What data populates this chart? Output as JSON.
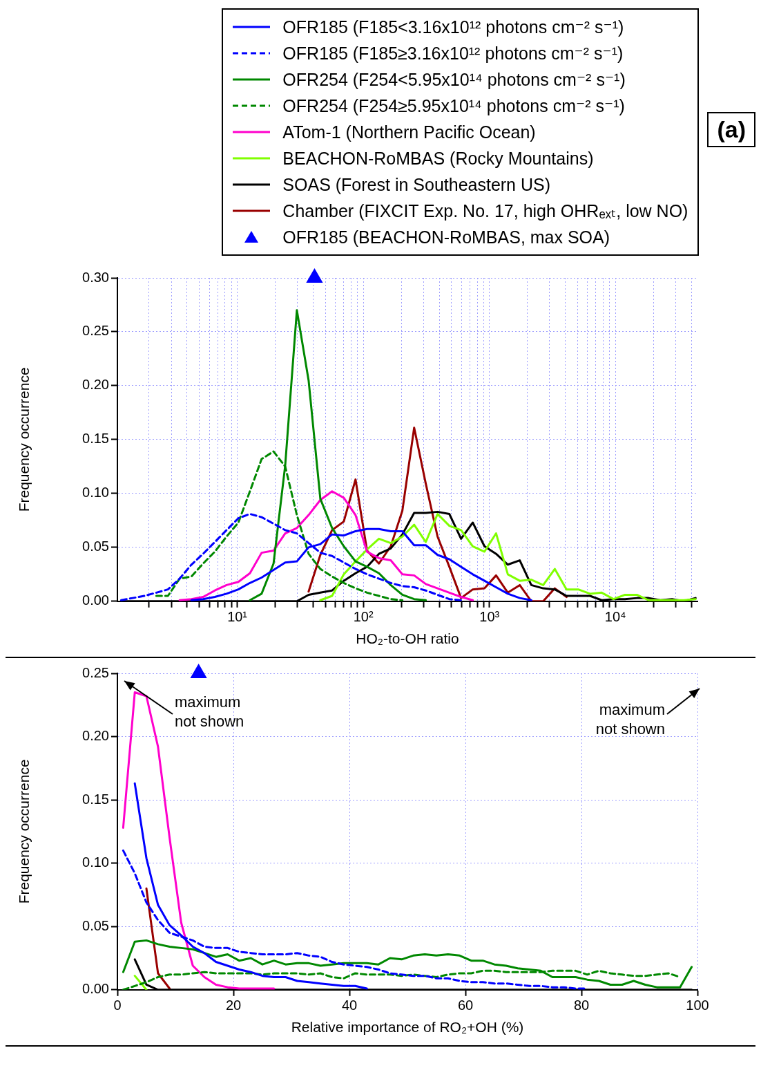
{
  "chart_data": [
    {
      "type": "line",
      "xlabel": "HO₂-to-OH ratio",
      "ylabel": "Frequency occurrence",
      "log": "x",
      "grid": true,
      "legend": "top right",
      "annotations": [
        "(a)"
      ],
      "x": [
        1.2,
        1.48,
        1.84,
        2.28,
        2.82,
        3.49,
        4.33,
        5.36,
        6.64,
        8.22,
        10.2,
        12.6,
        15.6,
        19.4,
        24.0,
        29.7,
        36.8,
        45.6,
        56.5,
        70.0,
        86.7,
        107,
        133,
        165,
        204,
        253,
        313,
        388,
        481,
        596,
        738,
        914,
        1130,
        1400,
        1740,
        2150,
        2670,
        3300,
        4090,
        5070,
        6280,
        7780,
        9640,
        11900,
        14800,
        18300,
        22700,
        28100,
        34800,
        43200
      ],
      "xlim": [
        1.12,
        44700
      ],
      "xticks": [
        {
          "value": 2,
          "label": null
        },
        {
          "value": 3,
          "label": null
        },
        {
          "value": 4,
          "label": null
        },
        {
          "value": 5,
          "label": null
        },
        {
          "value": 6,
          "label": null
        },
        {
          "value": 7,
          "label": null
        },
        {
          "value": 8,
          "label": null
        },
        {
          "value": 9,
          "label": null
        },
        {
          "value": 10,
          "label": "10¹"
        },
        {
          "value": 20,
          "label": null
        },
        {
          "value": 30,
          "label": null
        },
        {
          "value": 40,
          "label": null
        },
        {
          "value": 50,
          "label": null
        },
        {
          "value": 60,
          "label": null
        },
        {
          "value": 70,
          "label": null
        },
        {
          "value": 80,
          "label": null
        },
        {
          "value": 90,
          "label": null
        },
        {
          "value": 100,
          "label": "10²"
        },
        {
          "value": 200,
          "label": null
        },
        {
          "value": 300,
          "label": null
        },
        {
          "value": 400,
          "label": null
        },
        {
          "value": 500,
          "label": null
        },
        {
          "value": 600,
          "label": null
        },
        {
          "value": 700,
          "label": null
        },
        {
          "value": 800,
          "label": null
        },
        {
          "value": 900,
          "label": null
        },
        {
          "value": 1000,
          "label": "10³"
        },
        {
          "value": 2000,
          "label": null
        },
        {
          "value": 3000,
          "label": null
        },
        {
          "value": 4000,
          "label": null
        },
        {
          "value": 5000,
          "label": null
        },
        {
          "value": 6000,
          "label": null
        },
        {
          "value": 7000,
          "label": null
        },
        {
          "value": 8000,
          "label": null
        },
        {
          "value": 9000,
          "label": null
        },
        {
          "value": 10000,
          "label": "10⁴"
        },
        {
          "value": 20000,
          "label": null
        },
        {
          "value": 30000,
          "label": null
        },
        {
          "value": 40000,
          "label": null
        }
      ],
      "ylim": [
        0,
        0.3
      ],
      "yticks": [
        {
          "value": 0,
          "label": "0.00"
        },
        {
          "value": 0.05,
          "label": "0.05"
        },
        {
          "value": 0.1,
          "label": "0.10"
        },
        {
          "value": 0.15,
          "label": "0.15"
        },
        {
          "value": 0.2,
          "label": "0.20"
        },
        {
          "value": 0.25,
          "label": "0.25"
        },
        {
          "value": 0.3,
          "label": "0.30"
        }
      ],
      "series": [
        {
          "name": "OFR185 (F185<3.16x10¹² photons cm⁻² s⁻¹)",
          "color": "#0000ff",
          "values": [
            null,
            null,
            null,
            null,
            null,
            null,
            0.001,
            0.002,
            0.004,
            0.007,
            0.011,
            0.017,
            0.022,
            0.029,
            0.036,
            0.037,
            0.05,
            0.053,
            0.062,
            0.061,
            0.065,
            0.067,
            0.067,
            0.065,
            0.065,
            0.052,
            0.052,
            0.043,
            0.039,
            0.032,
            0.025,
            0.019,
            0.013,
            0.007,
            0.003,
            0.001,
            null,
            null,
            null,
            null,
            null,
            null,
            null,
            null,
            null,
            null,
            null,
            null,
            null,
            null
          ]
        },
        {
          "name": "OFR185 (F185≥3.16x10¹² photons cm⁻² s⁻¹)",
          "color": "#0000ff",
          "line_style": "dashed",
          "values": [
            0.001,
            0.003,
            0.005,
            0.008,
            0.011,
            0.021,
            0.034,
            0.044,
            0.055,
            0.066,
            0.077,
            0.081,
            0.078,
            0.072,
            0.066,
            0.063,
            0.054,
            0.045,
            0.042,
            0.036,
            0.03,
            0.025,
            0.021,
            0.017,
            0.014,
            0.013,
            0.01,
            0.006,
            0.002,
            0.001,
            null,
            null,
            null,
            null,
            null,
            null,
            null,
            null,
            null,
            null,
            null,
            null,
            null,
            null,
            null,
            null,
            null,
            null,
            null,
            null
          ]
        },
        {
          "name": "OFR254 (F254<5.95x10¹⁴ photons cm⁻² s⁻¹)",
          "color": "#008800",
          "values": [
            null,
            null,
            null,
            null,
            null,
            null,
            null,
            null,
            null,
            null,
            null,
            0.001,
            0.007,
            0.035,
            0.126,
            0.27,
            0.205,
            0.095,
            0.068,
            0.051,
            0.037,
            0.032,
            0.026,
            0.015,
            0.006,
            0.002,
            0.001,
            null,
            null,
            null,
            null,
            null,
            null,
            null,
            null,
            null,
            null,
            null,
            null,
            null,
            null,
            null,
            null,
            null,
            null,
            null,
            null,
            null,
            null,
            null
          ]
        },
        {
          "name": "OFR254 (F254≥5.95x10¹⁴ photons cm⁻² s⁻¹)",
          "color": "#008800",
          "line_style": "dashed",
          "values": [
            null,
            null,
            null,
            0.005,
            0.005,
            0.021,
            0.023,
            0.035,
            0.046,
            0.06,
            0.073,
            0.102,
            0.132,
            0.139,
            0.125,
            0.08,
            0.044,
            0.03,
            0.023,
            0.017,
            0.012,
            0.008,
            0.005,
            0.002,
            0.001,
            null,
            null,
            null,
            null,
            null,
            null,
            null,
            null,
            null,
            null,
            null,
            null,
            null,
            null,
            null,
            null,
            null,
            null,
            null,
            null,
            null,
            null,
            null,
            null,
            null
          ]
        },
        {
          "name": "ATom-1 (Northern Pacific Ocean)",
          "color": "#ff00cc",
          "values": [
            null,
            null,
            null,
            null,
            null,
            0.001,
            0.002,
            0.004,
            0.01,
            0.015,
            0.018,
            0.026,
            0.045,
            0.047,
            0.063,
            0.068,
            0.08,
            0.094,
            0.102,
            0.096,
            0.08,
            0.046,
            0.04,
            0.038,
            0.025,
            0.024,
            0.016,
            0.012,
            0.008,
            0.004,
            0.001,
            null,
            null,
            null,
            null,
            null,
            null,
            null,
            null,
            null,
            null,
            null,
            null,
            null,
            null,
            null,
            null,
            null,
            null,
            null
          ]
        },
        {
          "name": "BEACHON-RoMBAS (Rocky Mountains)",
          "color": "#80ff00",
          "values": [
            null,
            null,
            null,
            null,
            null,
            null,
            null,
            null,
            null,
            null,
            null,
            null,
            null,
            null,
            null,
            null,
            null,
            0.001,
            0.005,
            0.025,
            0.037,
            0.048,
            0.058,
            0.054,
            0.06,
            0.071,
            0.055,
            0.081,
            0.07,
            0.066,
            0.051,
            0.046,
            0.063,
            0.025,
            0.019,
            0.02,
            0.015,
            0.03,
            0.011,
            0.011,
            0.007,
            0.008,
            0.002,
            0.006,
            0.006,
            0.001,
            0.001,
            0.001,
            0.001,
            0.002
          ]
        },
        {
          "name": "SOAS (Forest in Southeastern US)",
          "color": "#000000",
          "values": [
            0,
            0,
            0,
            0,
            0,
            0,
            0,
            0,
            0,
            0,
            0,
            0,
            0,
            0,
            0,
            0,
            0.006,
            0.008,
            0.01,
            0.019,
            0.026,
            0.032,
            0.044,
            0.049,
            0.062,
            0.082,
            0.082,
            0.083,
            0.081,
            0.058,
            0.073,
            0.051,
            0.044,
            0.034,
            0.038,
            0.015,
            0.012,
            0.011,
            0.005,
            0.005,
            0.005,
            0.001,
            0.002,
            0.002,
            0.003,
            0.003,
            0.001,
            0.002,
            0,
            0.003
          ]
        },
        {
          "name": "Chamber (FIXCIT Exp. No. 17, high OHRₑₓₜ, low NO)",
          "color": "#990000",
          "values": [
            null,
            null,
            null,
            null,
            null,
            null,
            null,
            null,
            null,
            null,
            null,
            null,
            null,
            null,
            null,
            null,
            0.009,
            0.043,
            0.066,
            0.074,
            0.113,
            0.047,
            0.035,
            0.051,
            0.084,
            0.161,
            0.109,
            0.06,
            0.032,
            0.003,
            0.011,
            0.012,
            0.024,
            0.008,
            0.015,
            0,
            0,
            0.012,
            0.004,
            null,
            null,
            null,
            null,
            null,
            null,
            null,
            null,
            null,
            null,
            null
          ]
        },
        {
          "name": "OFR185 (BEACHON-RoMBAS, max SOA)",
          "type": "scatter",
          "marker": "triangle",
          "color": "#0000ff",
          "x": [
            41
          ],
          "values": [
            0.3
          ]
        }
      ]
    },
    {
      "type": "line",
      "xlabel": "Relative importance of RO₂+OH (%)",
      "ylabel": "Frequency occurrence",
      "grid": true,
      "annotations": [
        "maximum not shown",
        "maximum not shown"
      ],
      "x": [
        1,
        3,
        5,
        7,
        9,
        11,
        13,
        15,
        17,
        19,
        21,
        23,
        25,
        27,
        29,
        31,
        33,
        35,
        37,
        39,
        41,
        43,
        45,
        47,
        49,
        51,
        53,
        55,
        57,
        59,
        61,
        63,
        65,
        67,
        69,
        71,
        73,
        75,
        77,
        79,
        81,
        83,
        85,
        87,
        89,
        91,
        93,
        95,
        97,
        99
      ],
      "xlim": [
        0,
        100
      ],
      "xticks": [
        0,
        20,
        40,
        60,
        80,
        100
      ],
      "ylim": [
        0,
        0.25
      ],
      "yticks": [
        {
          "value": 0,
          "label": "0.00"
        },
        {
          "value": 0.05,
          "label": "0.05"
        },
        {
          "value": 0.1,
          "label": "0.10"
        },
        {
          "value": 0.15,
          "label": "0.15"
        },
        {
          "value": 0.2,
          "label": "0.20"
        },
        {
          "value": 0.25,
          "label": "0.25"
        }
      ],
      "series": [
        {
          "color": "#0000ff",
          "values": [
            null,
            0.163,
            0.104,
            0.067,
            0.051,
            0.043,
            0.034,
            0.029,
            0.022,
            0.019,
            0.016,
            0.014,
            0.011,
            0.01,
            0.01,
            0.007,
            0.006,
            0.005,
            0.004,
            0.003,
            0.003,
            0.001,
            null,
            null,
            null,
            null,
            null,
            null,
            null,
            null,
            null,
            null,
            null,
            null,
            null,
            null,
            null,
            null,
            null,
            null,
            null,
            null,
            null,
            null,
            null,
            null,
            null,
            null,
            null,
            null
          ]
        },
        {
          "color": "#0000ff",
          "line_style": "dashed",
          "values": [
            0.11,
            0.092,
            0.069,
            0.055,
            0.045,
            0.042,
            0.039,
            0.034,
            0.033,
            0.033,
            0.03,
            0.029,
            0.028,
            0.028,
            0.028,
            0.029,
            0.027,
            0.026,
            0.022,
            0.02,
            0.019,
            0.018,
            0.016,
            0.013,
            0.012,
            0.011,
            0.011,
            0.009,
            0.009,
            0.007,
            0.006,
            0.006,
            0.005,
            0.005,
            0.004,
            0.003,
            0.003,
            0.002,
            0.002,
            0.001,
            0.001,
            null,
            null,
            null,
            null,
            null,
            null,
            null,
            null,
            null
          ]
        },
        {
          "color": "#008800",
          "values": [
            0.014,
            0.038,
            0.039,
            0.036,
            0.034,
            0.033,
            0.032,
            0.029,
            0.026,
            0.028,
            0.023,
            0.025,
            0.02,
            0.023,
            0.02,
            0.021,
            0.021,
            0.019,
            0.02,
            0.021,
            0.021,
            0.021,
            0.02,
            0.025,
            0.024,
            0.027,
            0.028,
            0.027,
            0.028,
            0.027,
            0.023,
            0.023,
            0.02,
            0.019,
            0.017,
            0.016,
            0.015,
            0.01,
            0.01,
            0.01,
            0.008,
            0.007,
            0.004,
            0.004,
            0.007,
            0.004,
            0.002,
            0.002,
            0.002,
            0.018
          ]
        },
        {
          "color": "#008800",
          "line_style": "dashed",
          "values": [
            0,
            0.003,
            0.006,
            0.01,
            0.012,
            0.012,
            0.013,
            0.014,
            0.013,
            0.013,
            0.013,
            0.013,
            0.012,
            0.013,
            0.013,
            0.013,
            0.012,
            0.013,
            0.01,
            0.009,
            0.013,
            0.012,
            0.012,
            0.012,
            0.011,
            0.012,
            0.011,
            0.01,
            0.012,
            0.013,
            0.013,
            0.015,
            0.015,
            0.014,
            0.014,
            0.014,
            0.014,
            0.015,
            0.015,
            0.015,
            0.012,
            0.015,
            0.013,
            0.012,
            0.011,
            0.011,
            0.012,
            0.013,
            0.01,
            null
          ]
        },
        {
          "color": "#ff00cc",
          "values": [
            0.128,
            0.235,
            0.232,
            0.192,
            0.12,
            0.053,
            0.019,
            0.01,
            0.004,
            0.002,
            0.001,
            0.001,
            0.001,
            0.001,
            null,
            null,
            null,
            null,
            null,
            null,
            null,
            null,
            null,
            null,
            null,
            null,
            null,
            null,
            null,
            null,
            null,
            null,
            null,
            null,
            null,
            null,
            null,
            null,
            null,
            null,
            null,
            null,
            null,
            null,
            null,
            null,
            null,
            null,
            null,
            null
          ]
        },
        {
          "color": "#80ff00",
          "values": [
            null,
            0.011,
            0,
            null,
            null,
            null,
            null,
            null,
            null,
            null,
            null,
            null,
            null,
            null,
            null,
            null,
            null,
            null,
            null,
            null,
            null,
            null,
            null,
            null,
            null,
            null,
            null,
            null,
            null,
            null,
            null,
            null,
            null,
            null,
            null,
            null,
            null,
            null,
            null,
            null,
            null,
            null,
            null,
            null,
            null,
            null,
            null,
            null,
            null,
            null
          ]
        },
        {
          "color": "#000000",
          "values": [
            null,
            0.024,
            0.004,
            0,
            0,
            0,
            0,
            0,
            0,
            0,
            0,
            0,
            0,
            0,
            0,
            0,
            0,
            0,
            0,
            0,
            0,
            0,
            0,
            0,
            0,
            0,
            0,
            0,
            0,
            0,
            0,
            0,
            0,
            0,
            0,
            0,
            0,
            0,
            0,
            0,
            0,
            0,
            0,
            0,
            0,
            0,
            0,
            0,
            0,
            0
          ]
        },
        {
          "color": "#990000",
          "values": [
            null,
            null,
            0.08,
            0.013,
            0.001,
            null,
            null,
            null,
            null,
            null,
            null,
            null,
            null,
            null,
            null,
            null,
            null,
            null,
            null,
            null,
            null,
            null,
            null,
            null,
            null,
            null,
            null,
            null,
            null,
            null,
            null,
            null,
            null,
            null,
            null,
            null,
            null,
            null,
            null,
            null,
            null,
            null,
            null,
            null,
            null,
            null,
            null,
            null,
            null,
            null
          ]
        },
        {
          "type": "scatter",
          "marker": "triangle",
          "color": "#0000ff",
          "x": [
            14
          ],
          "values": [
            0.25
          ]
        }
      ]
    }
  ]
}
